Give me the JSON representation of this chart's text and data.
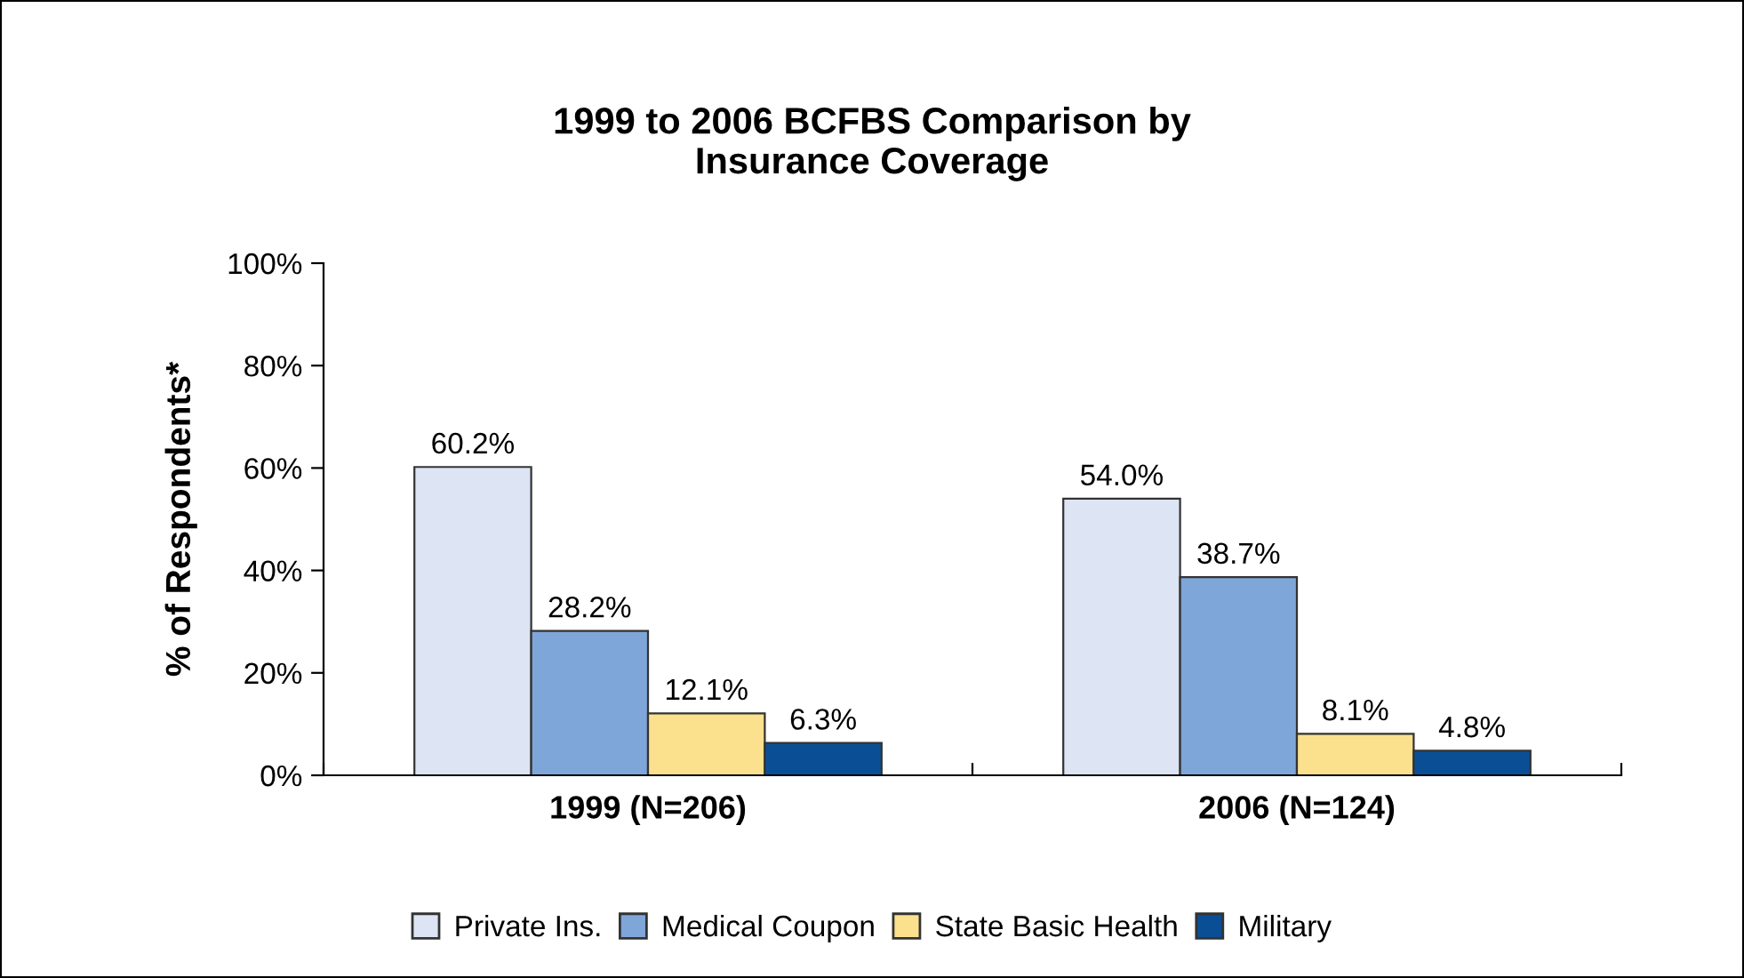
{
  "chart_data": {
    "type": "bar",
    "title": "1999 to 2006 BCFBS Comparison by\nInsurance Coverage",
    "ylabel": "% of Respondents*",
    "categories": [
      "1999 (N=206)",
      "2006 (N=124)"
    ],
    "series": [
      {
        "name": "Private Ins.",
        "color": "#dde4f3",
        "values": [
          60.2,
          54.0
        ],
        "value_labels": [
          "60.2%",
          "54.0%"
        ]
      },
      {
        "name": "Medical Coupon",
        "color": "#7fa6d9",
        "values": [
          28.2,
          38.7
        ],
        "value_labels": [
          "28.2%",
          "38.7%"
        ]
      },
      {
        "name": "State Basic Health",
        "color": "#fbe08e",
        "values": [
          12.1,
          8.1
        ],
        "value_labels": [
          "12.1%",
          "8.1%"
        ]
      },
      {
        "name": "Military",
        "color": "#0a4f96",
        "values": [
          6.3,
          4.8
        ],
        "value_labels": [
          "6.3%",
          "4.8%"
        ]
      }
    ],
    "ylim": [
      0,
      100
    ],
    "yticks": [
      {
        "value": 0,
        "label": "0%"
      },
      {
        "value": 20,
        "label": "20%"
      },
      {
        "value": 40,
        "label": "40%"
      },
      {
        "value": 60,
        "label": "60%"
      },
      {
        "value": 80,
        "label": "80%"
      },
      {
        "value": 100,
        "label": "100%"
      }
    ],
    "grid": false,
    "legend": "bottom"
  }
}
